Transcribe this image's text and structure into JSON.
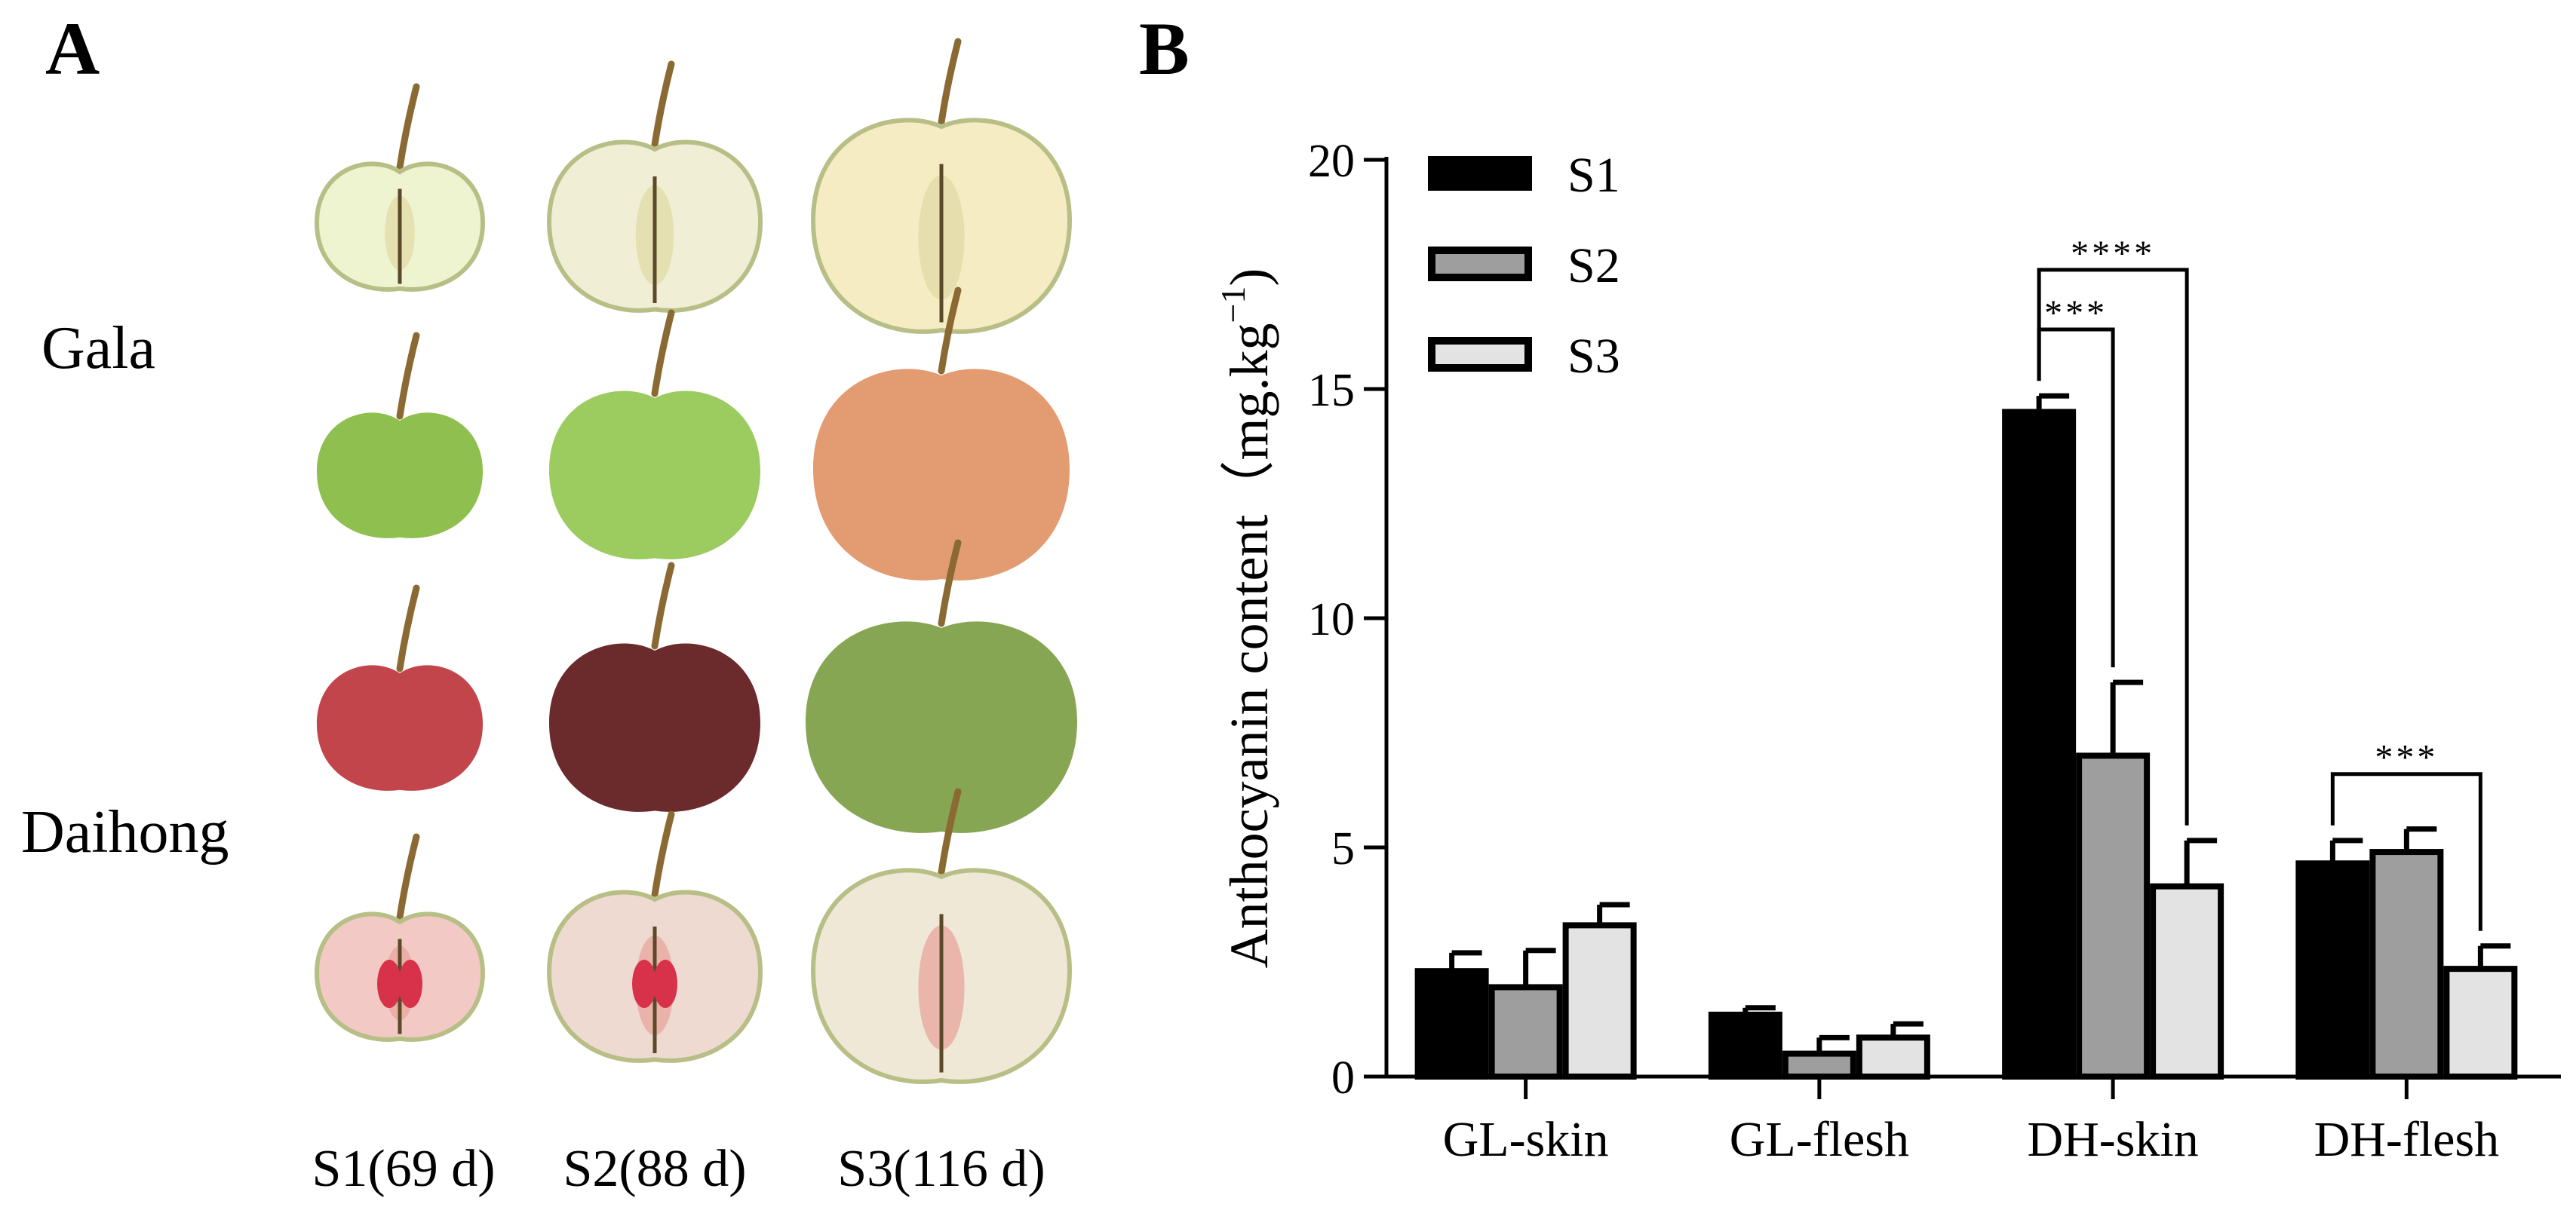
{
  "panels": {
    "a": "A",
    "b": "B"
  },
  "photos": {
    "rows": [
      {
        "variety": "Gala",
        "views": [
          "cut",
          "whole"
        ]
      },
      {
        "variety": "Daihong",
        "views": [
          "whole",
          "cut"
        ]
      }
    ],
    "stages": [
      "S1(69 d)",
      "S2(88 d)",
      "S3(116 d)"
    ],
    "fruit_colors": {
      "gala_cut": [
        "#eef3d0",
        "#f1eed6",
        "#f6ecc4"
      ],
      "gala_whole": [
        "#8fbf4e",
        "#9ccc60",
        "#e39b72"
      ],
      "daihong_whole": [
        "#c2454c",
        "#6b2a2c",
        "#86a653"
      ],
      "daihong_cut": [
        "#f2c9c4",
        "#eedad0",
        "#f0e8d6"
      ],
      "stem": "#8a6a32"
    }
  },
  "chart_data": {
    "type": "bar",
    "title": "",
    "xlabel": "",
    "ylabel": "Anthocyanin content（mg.kg",
    "ylabel_sup": "−1",
    "ylabel_close": ")",
    "ylim": [
      0,
      20
    ],
    "yticks": [
      0,
      5,
      10,
      15,
      20
    ],
    "ytick_labels": [
      "0",
      "5",
      "10",
      "15",
      "20"
    ],
    "categories": [
      "GL-skin",
      "GL-flesh",
      "DH-skin",
      "DH-flesh"
    ],
    "legend_position": "top-left",
    "series": [
      {
        "name": "S1",
        "color": "#000000",
        "values": [
          2.3,
          1.35,
          14.5,
          4.65
        ],
        "errors": [
          0.4,
          0.15,
          0.35,
          0.5
        ]
      },
      {
        "name": "S2",
        "color": "#9e9e9e",
        "values": [
          1.95,
          0.5,
          7.0,
          4.9
        ],
        "errors": [
          0.8,
          0.35,
          1.6,
          0.5
        ]
      },
      {
        "name": "S3",
        "color": "#e3e3e3",
        "values": [
          3.3,
          0.85,
          4.15,
          2.35
        ],
        "errors": [
          0.45,
          0.3,
          1.0,
          0.5
        ]
      }
    ],
    "significance": [
      {
        "category": "DH-skin",
        "from": "S1",
        "to": "S2",
        "label": "***",
        "level": 16.3
      },
      {
        "category": "DH-skin",
        "from": "S1",
        "to": "S3",
        "label": "****",
        "level": 17.6
      },
      {
        "category": "DH-flesh",
        "from": "S1",
        "to": "S3",
        "label": "***",
        "level": 6.6
      }
    ]
  }
}
